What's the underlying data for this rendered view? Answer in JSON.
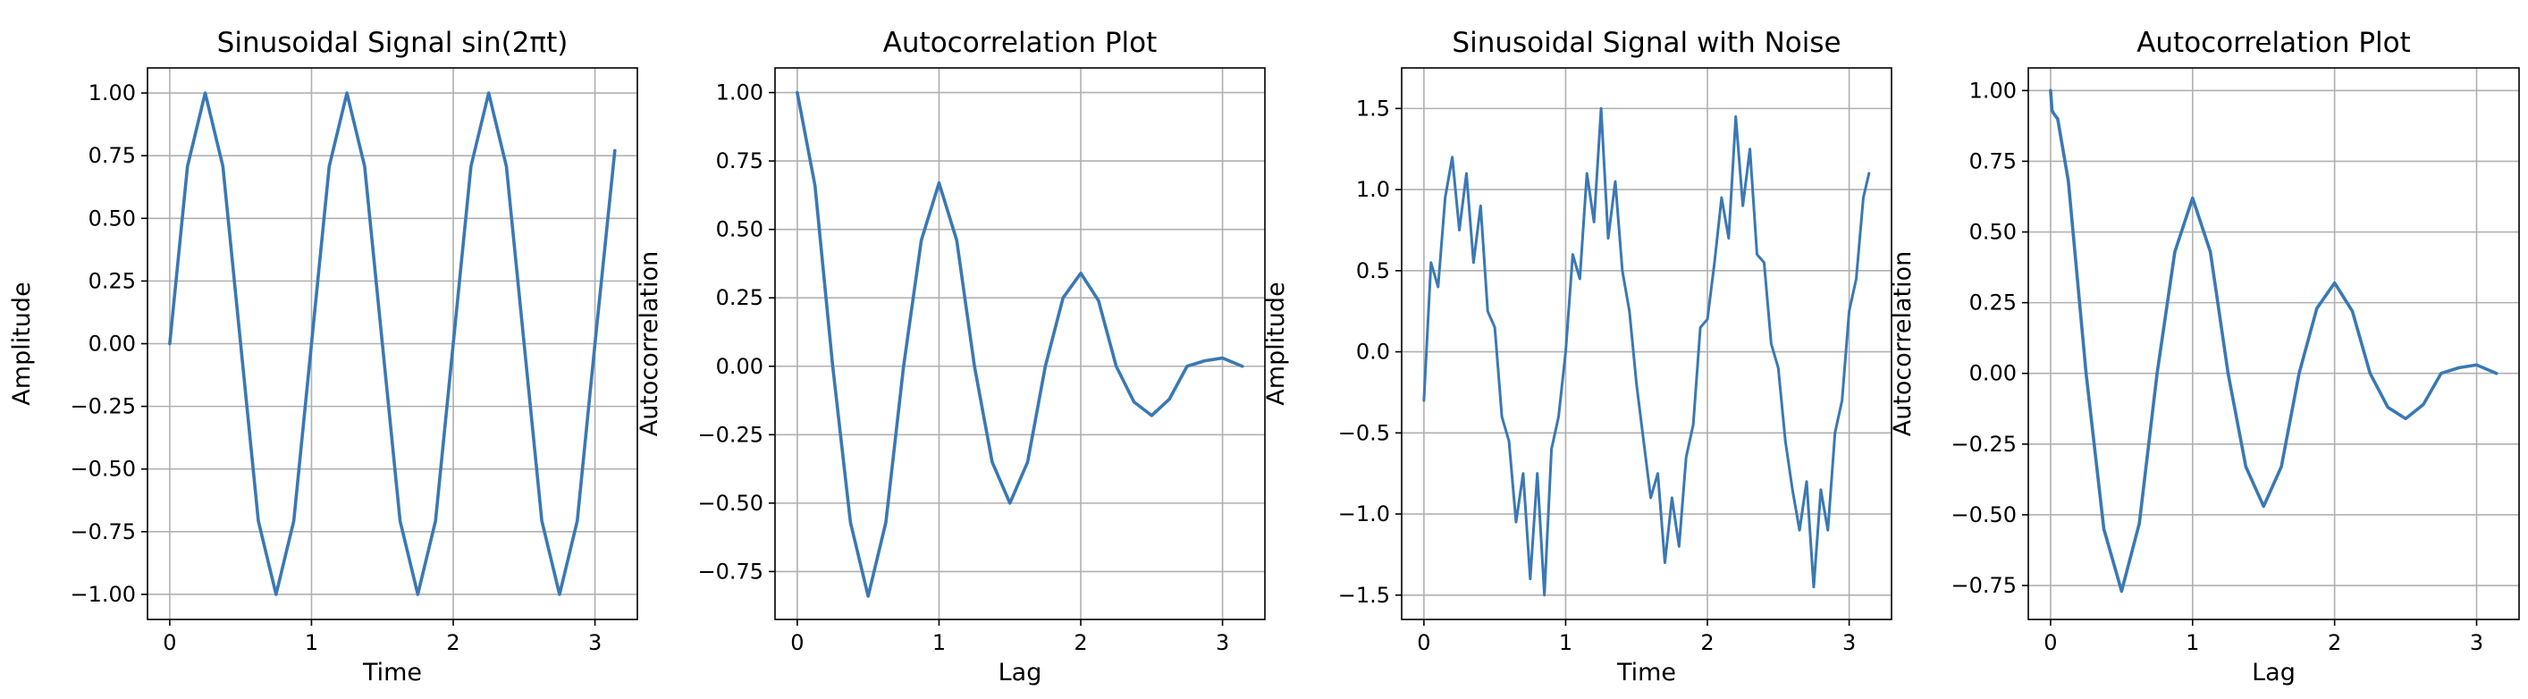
{
  "chart_data": [
    {
      "type": "line",
      "title": "Sinusoidal Signal sin(2πt)",
      "xlabel": "Time",
      "ylabel": "Amplitude",
      "xlim": [
        -0.157,
        3.299
      ],
      "ylim": [
        -1.1,
        1.1
      ],
      "xticks": [
        0,
        1,
        2,
        3
      ],
      "yticks": [
        -1.0,
        -0.75,
        -0.5,
        -0.25,
        0.0,
        0.25,
        0.5,
        0.75,
        1.0
      ],
      "ytick_labels": [
        "−1.00",
        "−0.75",
        "−0.50",
        "−0.25",
        "0.00",
        "0.25",
        "0.50",
        "0.75",
        "1.00"
      ],
      "grid": true,
      "color": "#3a78b4",
      "series": [
        {
          "x": [
            0,
            0.125,
            0.25,
            0.375,
            0.5,
            0.625,
            0.75,
            0.875,
            1.0,
            1.125,
            1.25,
            1.375,
            1.5,
            1.625,
            1.75,
            1.875,
            2.0,
            2.125,
            2.25,
            2.375,
            2.5,
            2.625,
            2.75,
            2.875,
            3.0,
            3.14
          ],
          "y": [
            0.0,
            0.707,
            1.0,
            0.707,
            0.0,
            -0.707,
            -1.0,
            -0.707,
            0.0,
            0.707,
            1.0,
            0.707,
            0.0,
            -0.707,
            -1.0,
            -0.707,
            0.0,
            0.707,
            1.0,
            0.707,
            0.0,
            -0.707,
            -1.0,
            -0.707,
            0.0,
            0.77
          ]
        }
      ]
    },
    {
      "type": "line",
      "title": "Autocorrelation Plot",
      "xlabel": "Lag",
      "ylabel": "Autocorrelation",
      "xlim": [
        -0.157,
        3.299
      ],
      "ylim": [
        -0.925,
        1.09
      ],
      "xticks": [
        0,
        1,
        2,
        3
      ],
      "yticks": [
        -0.75,
        -0.5,
        -0.25,
        0.0,
        0.25,
        0.5,
        0.75,
        1.0
      ],
      "ytick_labels": [
        "−0.75",
        "−0.50",
        "−0.25",
        "0.00",
        "0.25",
        "0.50",
        "0.75",
        "1.00"
      ],
      "grid": true,
      "color": "#3a78b4",
      "series": [
        {
          "x": [
            0,
            0.125,
            0.25,
            0.375,
            0.5,
            0.625,
            0.75,
            0.875,
            1.0,
            1.125,
            1.25,
            1.375,
            1.5,
            1.625,
            1.75,
            1.875,
            2.0,
            2.125,
            2.25,
            2.375,
            2.5,
            2.625,
            2.75,
            2.875,
            3.0,
            3.14
          ],
          "y": [
            1.0,
            0.66,
            0.0,
            -0.57,
            -0.84,
            -0.57,
            0.0,
            0.46,
            0.67,
            0.46,
            0.0,
            -0.35,
            -0.5,
            -0.35,
            0.0,
            0.25,
            0.34,
            0.24,
            0.0,
            -0.13,
            -0.18,
            -0.12,
            0.0,
            0.02,
            0.03,
            0.0
          ]
        }
      ]
    },
    {
      "type": "line",
      "title": "Sinusoidal Signal with Noise",
      "xlabel": "Time",
      "ylabel": "Amplitude",
      "xlim": [
        -0.157,
        3.299
      ],
      "ylim": [
        -1.65,
        1.75
      ],
      "xticks": [
        0,
        1,
        2,
        3
      ],
      "yticks": [
        -1.5,
        -1.0,
        -0.5,
        0.0,
        0.5,
        1.0,
        1.5
      ],
      "ytick_labels": [
        "−1.5",
        "−1.0",
        "−0.5",
        "0.0",
        "0.5",
        "1.0",
        "1.5"
      ],
      "grid": true,
      "color": "#3a78b4",
      "series": [
        {
          "x": [
            0,
            0.05,
            0.1,
            0.15,
            0.2,
            0.25,
            0.3,
            0.35,
            0.4,
            0.45,
            0.5,
            0.55,
            0.6,
            0.65,
            0.7,
            0.75,
            0.8,
            0.85,
            0.9,
            0.95,
            1.0,
            1.05,
            1.1,
            1.15,
            1.2,
            1.25,
            1.3,
            1.35,
            1.4,
            1.45,
            1.5,
            1.55,
            1.6,
            1.65,
            1.7,
            1.75,
            1.8,
            1.85,
            1.9,
            1.95,
            2.0,
            2.05,
            2.1,
            2.15,
            2.2,
            2.25,
            2.3,
            2.35,
            2.4,
            2.45,
            2.5,
            2.55,
            2.6,
            2.65,
            2.7,
            2.75,
            2.8,
            2.85,
            2.9,
            2.95,
            3.0,
            3.05,
            3.1,
            3.14
          ],
          "y": [
            -0.3,
            0.55,
            0.4,
            0.95,
            1.2,
            0.75,
            1.1,
            0.55,
            0.9,
            0.25,
            0.15,
            -0.4,
            -0.55,
            -1.05,
            -0.75,
            -1.4,
            -0.75,
            -1.5,
            -0.6,
            -0.4,
            0.0,
            0.6,
            0.45,
            1.1,
            0.8,
            1.5,
            0.7,
            1.05,
            0.5,
            0.25,
            -0.2,
            -0.55,
            -0.9,
            -0.75,
            -1.3,
            -0.9,
            -1.2,
            -0.65,
            -0.45,
            0.15,
            0.2,
            0.55,
            0.95,
            0.7,
            1.45,
            0.9,
            1.25,
            0.6,
            0.55,
            0.05,
            -0.1,
            -0.55,
            -0.85,
            -1.1,
            -0.8,
            -1.45,
            -0.85,
            -1.1,
            -0.5,
            -0.3,
            0.25,
            0.45,
            0.95,
            1.1
          ]
        }
      ]
    },
    {
      "type": "line",
      "title": "Autocorrelation Plot",
      "xlabel": "Lag",
      "ylabel": "Autocorrelation",
      "xlim": [
        -0.157,
        3.299
      ],
      "ylim": [
        -0.87,
        1.08
      ],
      "xticks": [
        0,
        1,
        2,
        3
      ],
      "yticks": [
        -0.75,
        -0.5,
        -0.25,
        0.0,
        0.25,
        0.5,
        0.75,
        1.0
      ],
      "ytick_labels": [
        "−0.75",
        "−0.50",
        "−0.25",
        "0.00",
        "0.25",
        "0.50",
        "0.75",
        "1.00"
      ],
      "grid": true,
      "color": "#3a78b4",
      "series": [
        {
          "x": [
            0,
            0.01,
            0.02,
            0.05,
            0.125,
            0.25,
            0.375,
            0.5,
            0.625,
            0.75,
            0.875,
            1.0,
            1.125,
            1.25,
            1.375,
            1.5,
            1.625,
            1.75,
            1.875,
            2.0,
            2.125,
            2.25,
            2.375,
            2.5,
            2.625,
            2.75,
            2.875,
            3.0,
            3.14
          ],
          "y": [
            1.0,
            0.93,
            0.92,
            0.9,
            0.68,
            0.0,
            -0.55,
            -0.77,
            -0.53,
            0.0,
            0.43,
            0.62,
            0.43,
            0.0,
            -0.33,
            -0.47,
            -0.33,
            0.0,
            0.23,
            0.32,
            0.22,
            0.0,
            -0.12,
            -0.16,
            -0.11,
            0.0,
            0.02,
            0.03,
            0.0
          ]
        }
      ]
    }
  ]
}
